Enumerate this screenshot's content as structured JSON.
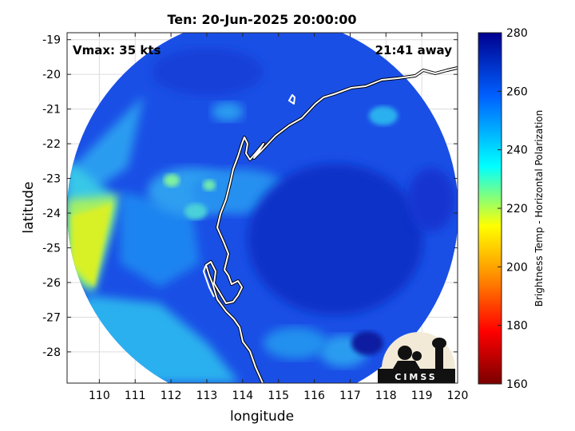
{
  "title": "Ten: 20-Jun-2025 20:00:00",
  "vmax_label": "Vmax: 35 kts",
  "time_away_label": "21:41 away",
  "xlabel": "longitude",
  "ylabel": "latitude",
  "logo_text": "CIMSS",
  "colorbar": {
    "label": "Brightness Temp - Horizontal Polarization",
    "min": 160,
    "max": 280,
    "ticks": [
      "160",
      "180",
      "200",
      "220",
      "240",
      "260",
      "280"
    ],
    "colors": [
      "#7a0000",
      "#ff0000",
      "#ff8800",
      "#ffff00",
      "#00ffff",
      "#0060ff",
      "#00008f"
    ]
  },
  "chart_data": {
    "type": "heatmap",
    "xlim": [
      109.1,
      120
    ],
    "ylim": [
      -28.9,
      -18.8
    ],
    "x_ticks": [
      "110",
      "111",
      "112",
      "113",
      "114",
      "115",
      "116",
      "117",
      "118",
      "119",
      "120"
    ],
    "y_ticks": [
      "-19",
      "-20",
      "-21",
      "-22",
      "-23",
      "-24",
      "-25",
      "-26",
      "-27",
      "-28"
    ],
    "grid": true,
    "swath_center": [
      114.5,
      -23.8
    ],
    "swath_radius_deg": 5.3
  }
}
